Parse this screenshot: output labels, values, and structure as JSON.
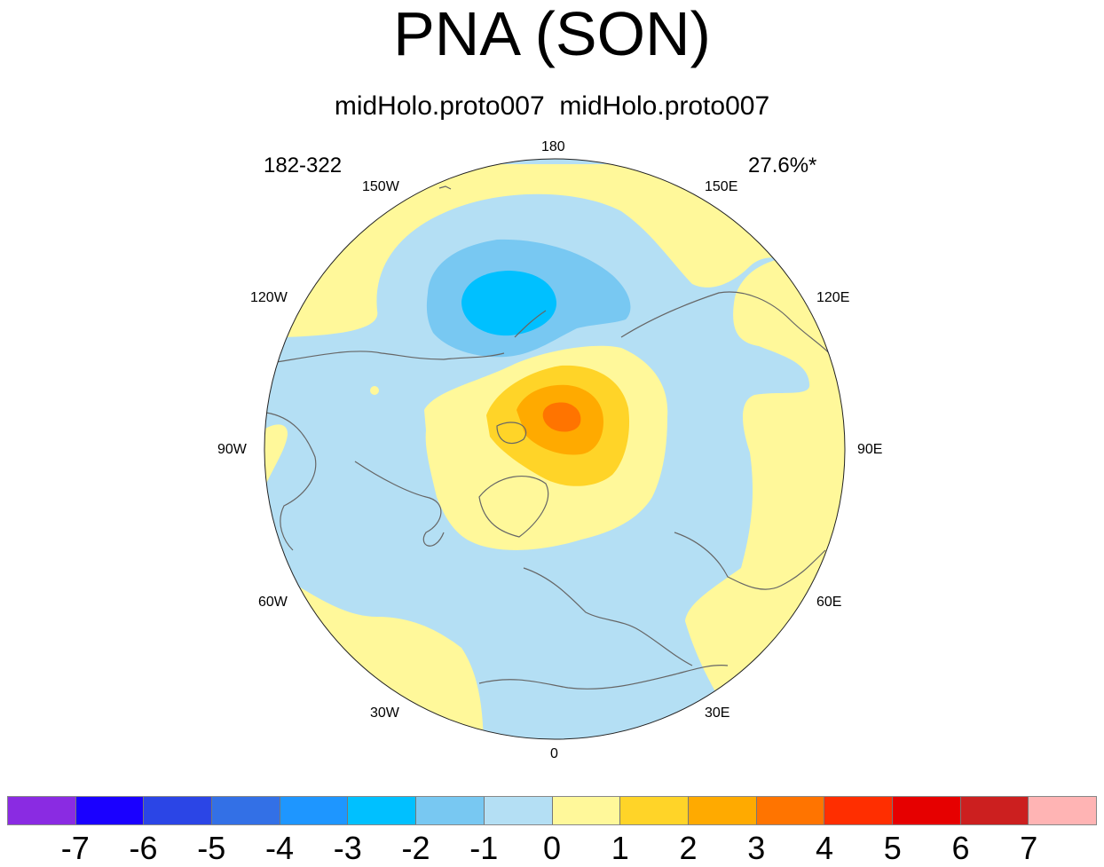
{
  "title": "PNA (SON)",
  "subtitle": "midHolo.proto007  midHolo.proto007",
  "left_label": "182-322",
  "right_label": "27.6%*",
  "longitude_labels": [
    "180",
    "150E",
    "120E",
    "90E",
    "60E",
    "30E",
    "0",
    "30W",
    "60W",
    "90W",
    "120W",
    "150W"
  ],
  "colorbar": {
    "colors": [
      "#8a2be2",
      "#1a00ff",
      "#2b45e6",
      "#3370e6",
      "#1e96ff",
      "#00c0ff",
      "#78c8f2",
      "#b4dff4",
      "#fff89a",
      "#ffd428",
      "#ffaa00",
      "#ff7400",
      "#ff2e00",
      "#e60000",
      "#cc1f1f",
      "#ffb4b4"
    ],
    "labels": [
      "-7",
      "-6",
      "-5",
      "-4",
      "-3",
      "-2",
      "-1",
      "0",
      "1",
      "2",
      "3",
      "4",
      "5",
      "6",
      "7"
    ]
  },
  "colors": {
    "ocean_base": "#b4dff4",
    "positive_1": "#fff89a",
    "positive_2": "#ffd428",
    "positive_3": "#ffaa00",
    "positive_4": "#ff7400",
    "negative_1": "#78c8f2",
    "negative_2": "#00c0ff",
    "coastline": "#666666"
  }
}
